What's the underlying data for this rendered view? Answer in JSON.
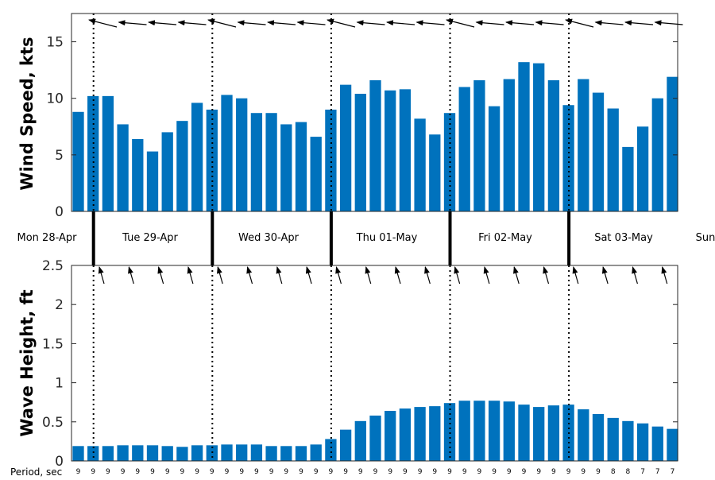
{
  "chart_data": [
    {
      "type": "bar",
      "ylabel": "Wind Speed, kts",
      "ylim": [
        0,
        17.5
      ],
      "yticks": [
        0,
        5,
        10,
        15
      ],
      "x_start": "Mon 28-Apr 21:00",
      "x_step_hours": 3,
      "values": [
        8.8,
        10.2,
        10.2,
        7.7,
        6.4,
        5.3,
        7.0,
        8.0,
        9.6,
        9.0,
        10.3,
        10.0,
        8.7,
        8.7,
        7.7,
        7.9,
        6.6,
        9.0,
        11.2,
        10.4,
        11.6,
        10.7,
        10.8,
        8.2,
        6.8,
        8.7,
        11.0,
        11.6,
        9.3,
        11.7,
        13.2,
        13.1,
        11.6,
        9.4,
        11.7,
        10.5,
        9.1,
        5.7,
        7.5,
        10.0,
        11.9
      ],
      "direction_arrows": "wind direction arrows along the top edge, pointing left/west",
      "color": "#0072bd",
      "grid": false
    },
    {
      "type": "bar",
      "ylabel": "Wave Height, ft",
      "ylim": [
        0,
        2.5
      ],
      "yticks": [
        0,
        0.5,
        1,
        1.5,
        2,
        2.5
      ],
      "tick_labels": [
        "0",
        "0.5",
        "1",
        "1.5",
        "2",
        "2.5"
      ],
      "x_start": "Mon 28-Apr 21:00",
      "x_step_hours": 3,
      "values": [
        0.19,
        0.19,
        0.19,
        0.2,
        0.2,
        0.2,
        0.19,
        0.18,
        0.2,
        0.2,
        0.21,
        0.21,
        0.21,
        0.19,
        0.19,
        0.19,
        0.21,
        0.28,
        0.4,
        0.51,
        0.58,
        0.64,
        0.67,
        0.69,
        0.7,
        0.74,
        0.77,
        0.77,
        0.77,
        0.76,
        0.72,
        0.69,
        0.71,
        0.72,
        0.66,
        0.6,
        0.55,
        0.51,
        0.48,
        0.44,
        0.41
      ],
      "period_title": "Period, sec",
      "periods": [
        "9",
        "9",
        "9",
        "9",
        "9",
        "9",
        "9",
        "9",
        "9",
        "9",
        "9",
        "9",
        "9",
        "9",
        "9",
        "9",
        "9",
        "9",
        "9",
        "9",
        "9",
        "9",
        "9",
        "9",
        "9",
        "9",
        "9",
        "9",
        "9",
        "9",
        "9",
        "9",
        "9",
        "9",
        "9",
        "9",
        "8",
        "8",
        "7",
        "7",
        "7"
      ],
      "direction_arrows": "wave direction arrows along the top edge, pointing up (from the south)",
      "color": "#0072bd",
      "grid": false
    }
  ],
  "day_labels": [
    "Mon 28-Apr",
    "Tue 29-Apr",
    "Wed 30-Apr",
    "Thu 01-May",
    "Fri 02-May",
    "Sat 03-May",
    "Sun"
  ],
  "colors": {
    "bar": "#0072bd",
    "axis": "#262626",
    "arrow": "#000000"
  }
}
